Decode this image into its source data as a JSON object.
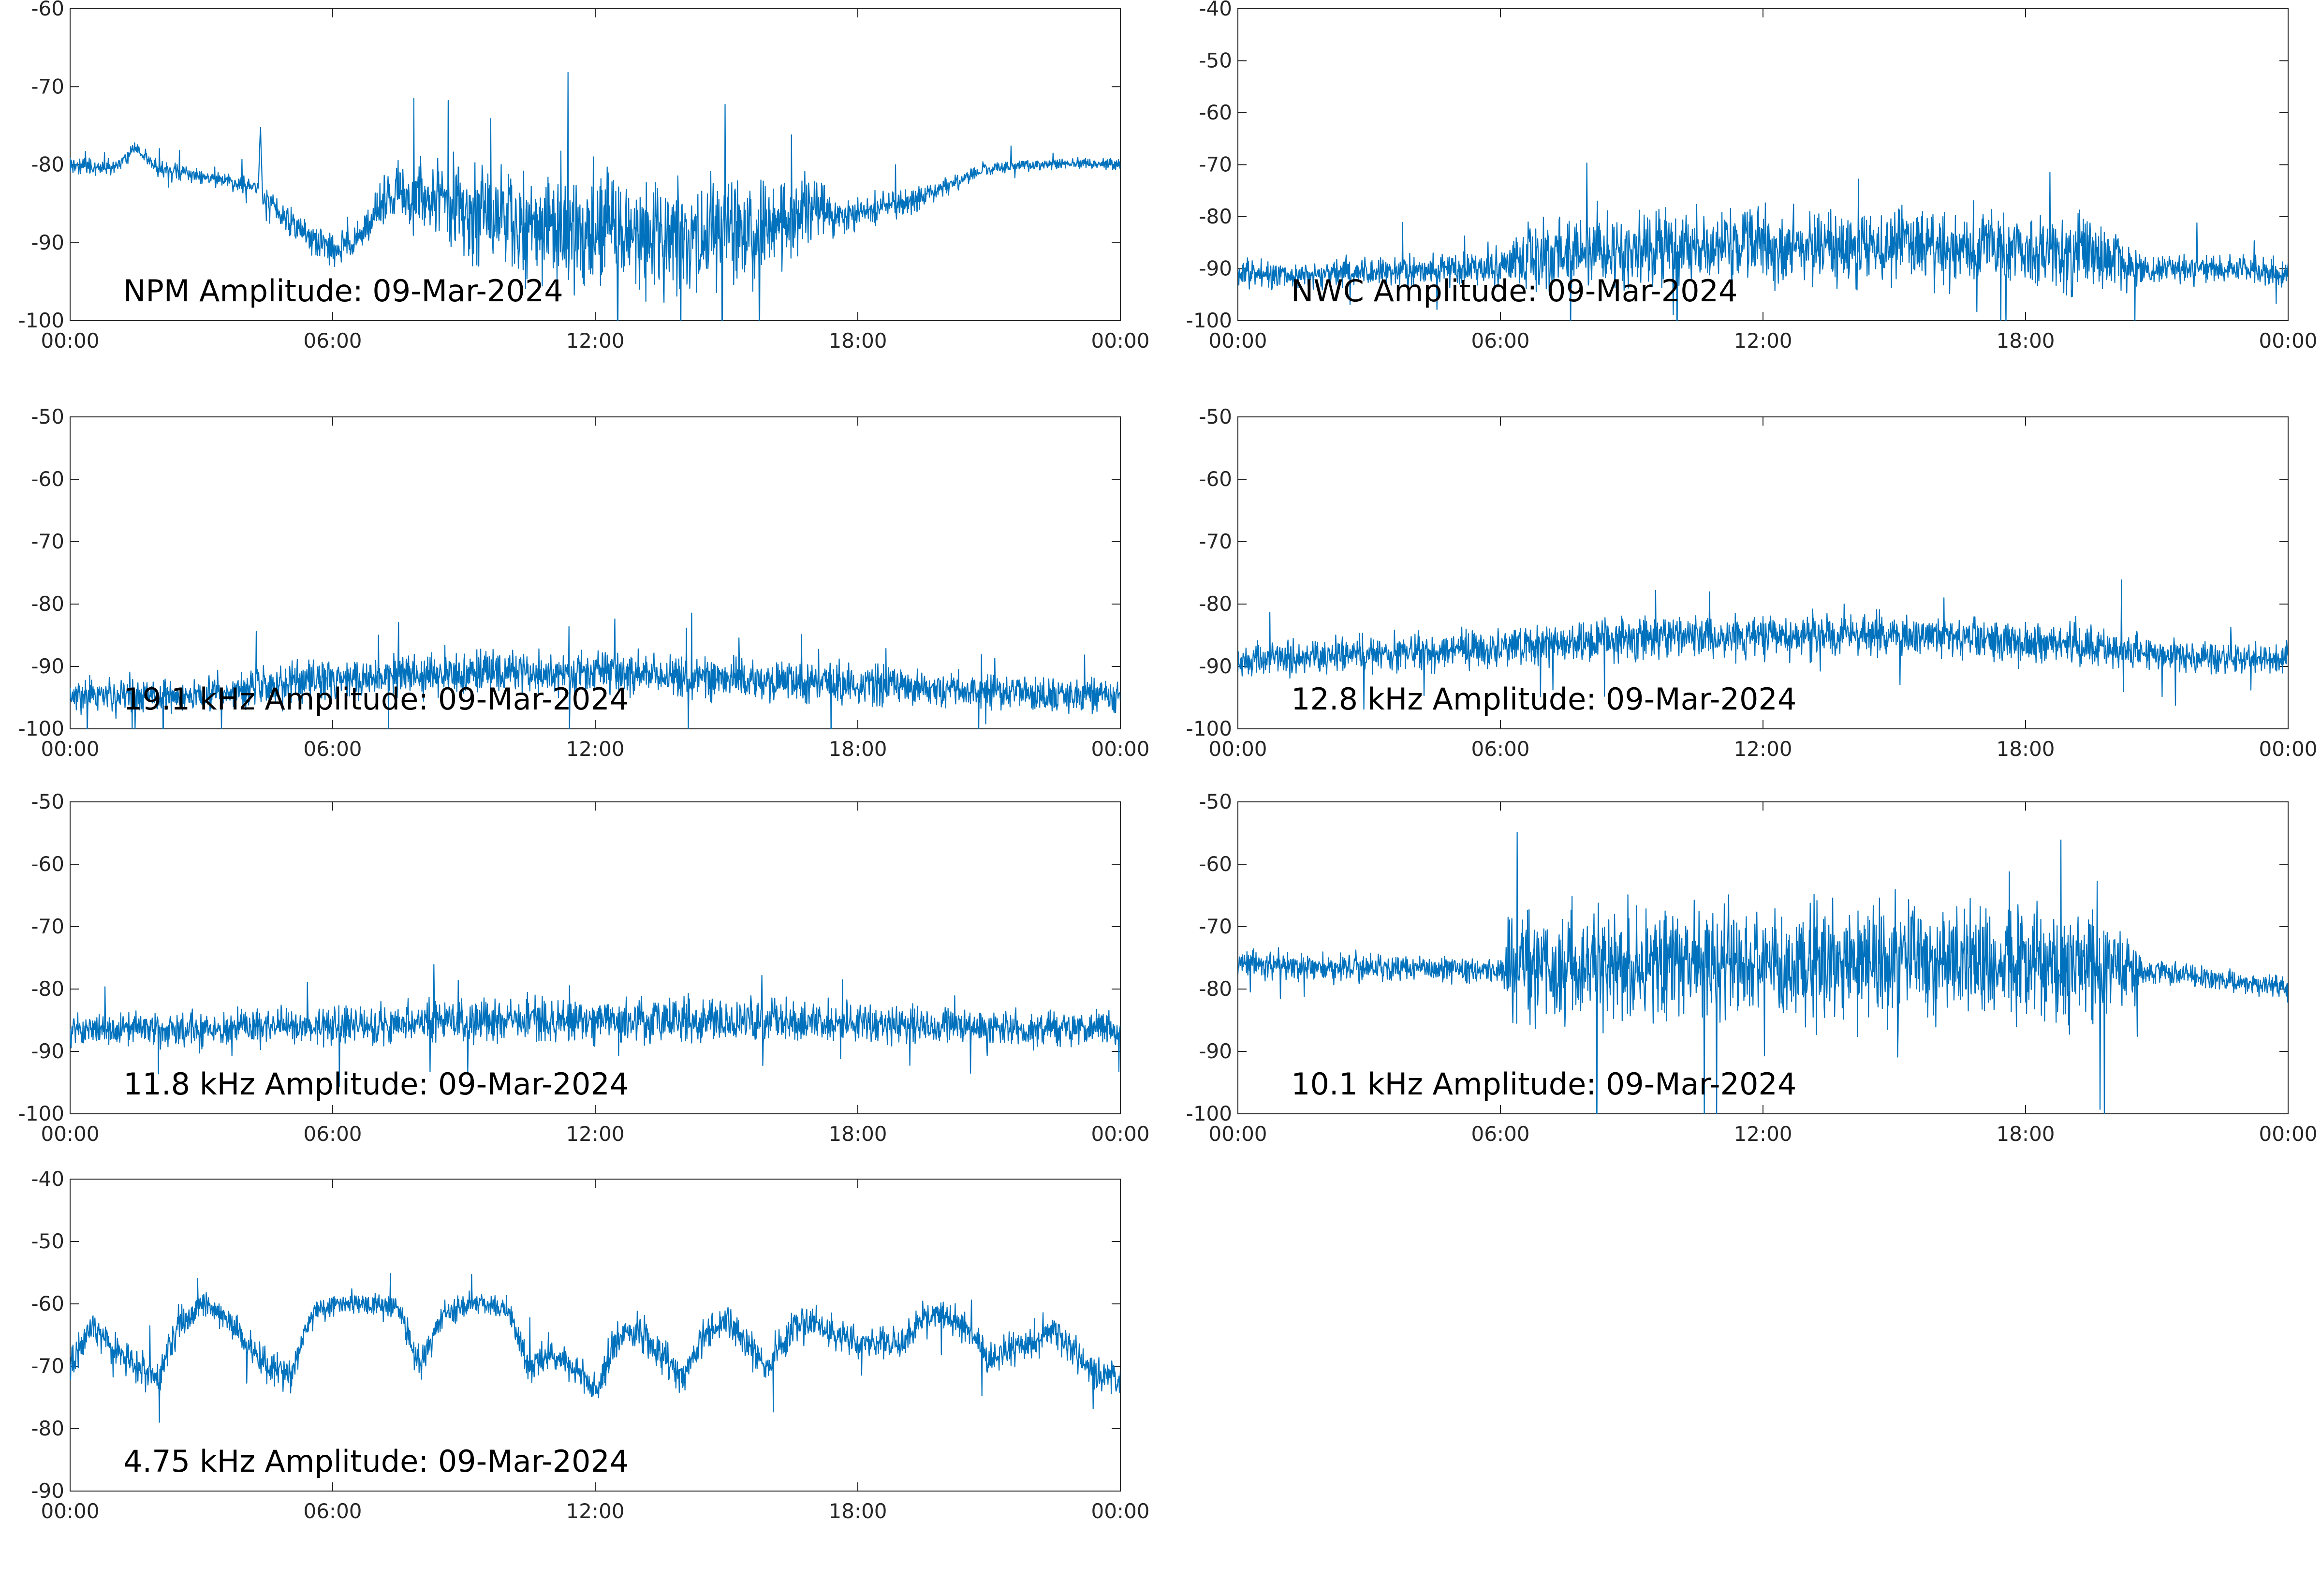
{
  "figure": {
    "background": "#ffffff",
    "line_color": "#0072bd",
    "axis_color": "#262626"
  },
  "chart_data": [
    {
      "type": "line",
      "title": "NPM Amplitude: 09-Mar-2024",
      "xlabel": "",
      "ylabel": "",
      "xticks": [
        "00:00",
        "06:00",
        "12:00",
        "18:00",
        "00:00"
      ],
      "xlim": [
        0,
        24
      ],
      "ylim": [
        -100,
        -60
      ],
      "yticks": [
        -60,
        -70,
        -80,
        -90,
        -100
      ],
      "grid": false,
      "series": [
        {
          "x": [
            0,
            1,
            1.5,
            2,
            3,
            4,
            4.3,
            4.35,
            4.4,
            5,
            5.5,
            6,
            6.5,
            7,
            7.5,
            8,
            9,
            10,
            10.5,
            11,
            12,
            13,
            14,
            15,
            16,
            16.5,
            17,
            17.5,
            18,
            19,
            20,
            20.5,
            21,
            22,
            23,
            24
          ],
          "y": [
            -80,
            -80.5,
            -78,
            -80.5,
            -81.5,
            -82.5,
            -83,
            -75,
            -84,
            -87,
            -89.5,
            -91,
            -90,
            -86,
            -83.5,
            -84,
            -85.5,
            -87,
            -87.5,
            -88,
            -88.5,
            -89,
            -89,
            -88.5,
            -88,
            -87.5,
            -84.5,
            -87,
            -86,
            -85,
            -83,
            -81.5,
            -80.5,
            -80,
            -79.8,
            -80
          ],
          "spread": [
            1.5,
            1.5,
            1.2,
            1.5,
            1.5,
            1.5,
            1.5,
            1,
            2,
            3,
            3,
            3,
            3,
            4,
            5,
            7,
            9,
            10,
            10,
            11,
            11,
            11,
            11,
            10,
            9,
            7,
            6,
            4,
            3,
            2.5,
            2,
            1.5,
            1.2,
            1,
            1,
            1
          ]
        }
      ]
    },
    {
      "type": "line",
      "title": "NWC Amplitude: 09-Mar-2024",
      "xlabel": "",
      "ylabel": "",
      "xticks": [
        "00:00",
        "06:00",
        "12:00",
        "18:00",
        "00:00"
      ],
      "xlim": [
        0,
        24
      ],
      "ylim": [
        -100,
        -40
      ],
      "yticks": [
        -40,
        -50,
        -60,
        -70,
        -80,
        -90,
        -100
      ],
      "grid": false,
      "series": [
        {
          "x": [
            0,
            2,
            4,
            6,
            6.5,
            7,
            8,
            10,
            12,
            14,
            16,
            18,
            19,
            20,
            20.5,
            21,
            22,
            23,
            24
          ],
          "y": [
            -91,
            -91,
            -90.5,
            -90,
            -88,
            -87,
            -86.5,
            -86,
            -85.5,
            -85.5,
            -86,
            -86.5,
            -87,
            -88,
            -90,
            -90,
            -90,
            -90,
            -91
          ],
          "spread": [
            4,
            4,
            4,
            5,
            9,
            10,
            10,
            10,
            10,
            10,
            10,
            10,
            10,
            10,
            5,
            4,
            4,
            4,
            4
          ]
        }
      ]
    },
    {
      "type": "line",
      "title": "19.1 kHz Amplitude: 09-Mar-2024",
      "xlabel": "",
      "ylabel": "",
      "xticks": [
        "00:00",
        "06:00",
        "12:00",
        "18:00",
        "00:00"
      ],
      "xlim": [
        0,
        24
      ],
      "ylim": [
        -100,
        -50
      ],
      "yticks": [
        -50,
        -60,
        -70,
        -80,
        -90,
        -100
      ],
      "grid": false,
      "series": [
        {
          "x": [
            0,
            3,
            6,
            9,
            12,
            15,
            18,
            21,
            24
          ],
          "y": [
            -95,
            -94.5,
            -92,
            -91,
            -91,
            -92,
            -93,
            -94,
            -95
          ],
          "spread": [
            4,
            4,
            5,
            5,
            5,
            5,
            4.5,
            4,
            4
          ]
        }
      ]
    },
    {
      "type": "line",
      "title": "12.8 kHz Amplitude: 09-Mar-2024",
      "xlabel": "",
      "ylabel": "",
      "xticks": [
        "00:00",
        "06:00",
        "12:00",
        "18:00",
        "00:00"
      ],
      "xlim": [
        0,
        24
      ],
      "ylim": [
        -100,
        -50
      ],
      "yticks": [
        -50,
        -60,
        -70,
        -80,
        -90,
        -100
      ],
      "grid": false,
      "series": [
        {
          "x": [
            0,
            3,
            6,
            9,
            12,
            15,
            18,
            20,
            21,
            24
          ],
          "y": [
            -89,
            -88,
            -87,
            -85.5,
            -85,
            -85,
            -86,
            -87,
            -88,
            -89
          ],
          "spread": [
            4,
            4,
            4.5,
            5,
            5,
            5,
            5,
            5,
            3.5,
            3.5
          ]
        }
      ]
    },
    {
      "type": "line",
      "title": "11.8 kHz Amplitude: 09-Mar-2024",
      "xlabel": "",
      "ylabel": "",
      "xticks": [
        "00:00",
        "06:00",
        "12:00",
        "18:00",
        "00:00"
      ],
      "xlim": [
        0,
        24
      ],
      "ylim": [
        -100,
        -50
      ],
      "yticks": [
        -50,
        -60,
        -70,
        -80,
        -90,
        -100
      ],
      "grid": false,
      "series": [
        {
          "x": [
            0,
            3,
            6,
            9,
            12,
            15,
            18,
            21,
            24
          ],
          "y": [
            -86.5,
            -86.5,
            -86,
            -85,
            -85,
            -85,
            -85.5,
            -86,
            -86.5
          ],
          "spread": [
            4,
            4,
            4.5,
            5,
            5,
            5,
            4.5,
            4,
            4
          ]
        }
      ]
    },
    {
      "type": "line",
      "title": "10.1 kHz Amplitude: 09-Mar-2024",
      "xlabel": "",
      "ylabel": "",
      "xticks": [
        "00:00",
        "06:00",
        "12:00",
        "18:00",
        "00:00"
      ],
      "xlim": [
        0,
        24
      ],
      "ylim": [
        -100,
        -50
      ],
      "yticks": [
        -50,
        -60,
        -70,
        -80,
        -90,
        -100
      ],
      "grid": false,
      "series": [
        {
          "x": [
            0,
            2,
            4,
            6,
            6.2,
            8,
            10,
            12,
            14,
            16,
            18,
            19.5,
            20.5,
            20.7,
            22,
            24
          ],
          "y": [
            -76,
            -76.5,
            -76.5,
            -77,
            -77,
            -76,
            -76,
            -76,
            -76,
            -76,
            -76,
            -77,
            -77,
            -77,
            -78,
            -80
          ],
          "spread": [
            3,
            3,
            3,
            3,
            12,
            13,
            13,
            13,
            13,
            13,
            13,
            12,
            8,
            3,
            2.5,
            2.5
          ]
        }
      ]
    },
    {
      "type": "line",
      "title": "4.75 kHz Amplitude: 09-Mar-2024",
      "xlabel": "",
      "ylabel": "",
      "xticks": [
        "00:00",
        "06:00",
        "12:00",
        "18:00",
        "00:00"
      ],
      "xlim": [
        0,
        24
      ],
      "ylim": [
        -90,
        -40
      ],
      "yticks": [
        -40,
        -50,
        -60,
        -70,
        -80,
        -90
      ],
      "grid": false,
      "series": [
        {
          "x": [
            0,
            0.5,
            1,
            1.5,
            2,
            2.5,
            3,
            3.5,
            4,
            4.5,
            5,
            5.5,
            6,
            6.5,
            7,
            7.5,
            8,
            8.5,
            9,
            9.5,
            10,
            10.5,
            11,
            11.5,
            12,
            12.5,
            13,
            13.5,
            14,
            14.5,
            15,
            15.5,
            16,
            16.5,
            17,
            17.5,
            18,
            18.5,
            19,
            19.5,
            20,
            20.5,
            21,
            21.5,
            22,
            22.5,
            23,
            23.5,
            24
          ],
          "y": [
            -70,
            -64,
            -67,
            -70,
            -72,
            -63,
            -60,
            -62,
            -66,
            -70,
            -72,
            -62,
            -60,
            -60,
            -60,
            -61,
            -70,
            -62,
            -60,
            -60,
            -61,
            -70,
            -68,
            -70,
            -74,
            -66,
            -64,
            -68,
            -72,
            -65,
            -62,
            -67,
            -70,
            -64,
            -63,
            -65,
            -66,
            -66,
            -67,
            -62,
            -62,
            -64,
            -69,
            -67,
            -66,
            -64,
            -68,
            -72,
            -72
          ],
          "spread": [
            4,
            4,
            4,
            4,
            4,
            4,
            3,
            3,
            4,
            4,
            4,
            3,
            2.5,
            2.5,
            2.5,
            3,
            4,
            3,
            2.5,
            2.5,
            3,
            4,
            4,
            4,
            4,
            4,
            4,
            4,
            4,
            4,
            4,
            4,
            4,
            4,
            4,
            4,
            4,
            4,
            4,
            3,
            3,
            4,
            4,
            4,
            4,
            4,
            4,
            4,
            4
          ]
        }
      ]
    }
  ]
}
